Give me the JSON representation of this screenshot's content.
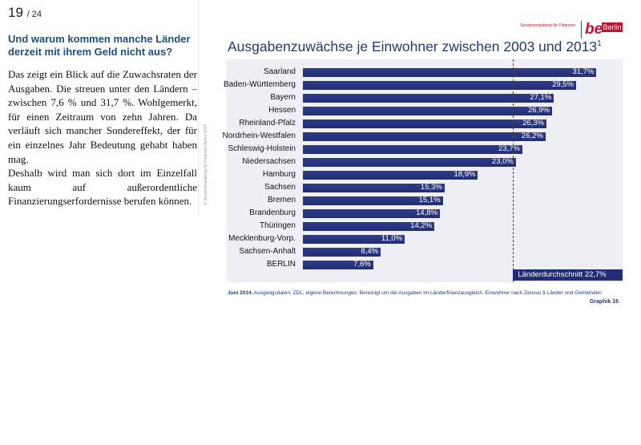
{
  "page": {
    "number": "19",
    "total": "/ 24"
  },
  "heading": "Und warum kommen manche Länder derzeit mit ihrem Geld nicht aus?",
  "paragraphs": [
    "Das zeigt ein Blick auf die Zuwachsraten der Ausgaben. Die streuen unter den Ländern – zwischen 7,6 % und 31,7 %. Wohlgemerkt, für einen Zeitraum von zehn Jahren. Da verläuft sich mancher Sondereffekt, der für ein einzelnes Jahr Bedeutung gehabt haben mag.",
    "Deshalb wird man sich dort im Einzelfall kaum auf außerordentliche Finanzierungserfordernisse berufen können."
  ],
  "side_copyright": "© Senatsverwaltung für Finanzen Berlin 2014",
  "logo": {
    "small_text": "Senatsverwaltung für Finanzen",
    "be": "be",
    "berlin": "Berlin"
  },
  "chart_data": {
    "type": "bar",
    "orientation": "horizontal",
    "title": "Ausgabenzuwächse je Einwohner zwischen 2003 und 2013",
    "title_sup": "1",
    "categories": [
      "Saarland",
      "Baden-Württemberg",
      "Bayern",
      "Hessen",
      "Rheinland-Pfalz",
      "Nordrhein-Westfalen",
      "Schleswig-Holstein",
      "Niedersachsen",
      "Hamburg",
      "Sachsen",
      "Bremen",
      "Brandenburg",
      "Thüringen",
      "Mecklenburg-Vorp.",
      "Sachsen-Anhalt",
      "BERLIN"
    ],
    "values": [
      31.7,
      29.5,
      27.1,
      26.9,
      26.3,
      26.2,
      23.7,
      23.0,
      18.9,
      15.3,
      15.1,
      14.8,
      14.2,
      11.0,
      8.4,
      7.6
    ],
    "value_labels": [
      "31,7%",
      "29,5%",
      "27,1%",
      "26,9%",
      "26,3%",
      "26,2%",
      "23,7%",
      "23,0%",
      "18,9%",
      "15,3%",
      "15,1%",
      "14,8%",
      "14,2%",
      "11,0%",
      "8,4%",
      "7,6%"
    ],
    "average": {
      "value": 22.7,
      "label": "Länderdurchschnitt  22,7%"
    },
    "xlim": [
      0,
      34
    ],
    "bar_color": "#2b3680",
    "background_color": "#eef0f6",
    "grid": false,
    "legend": "none"
  },
  "footnote": {
    "date": "Juni 2014.",
    "text": " Ausgangsdaten: ZDL, eigene Berechnungen. Bereinigt um die Ausgaben im Länderfinanzausgleich. Einwohner nach Zensus    ",
    "note_num": "1",
    "note_text": "  Länder und Gemeinden"
  },
  "graphik": "Graphik 16"
}
